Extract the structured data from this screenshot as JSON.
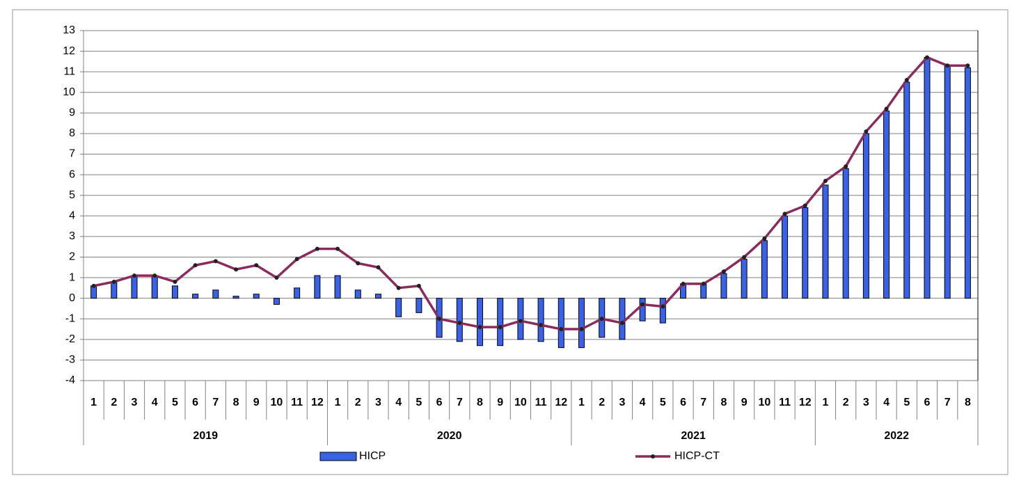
{
  "chart_data": {
    "type": "bar-line",
    "category_groups": [
      {
        "name": "2019",
        "categories": [
          "1",
          "2",
          "3",
          "4",
          "5",
          "6",
          "7",
          "8",
          "9",
          "10",
          "11",
          "12"
        ]
      },
      {
        "name": "2020",
        "categories": [
          "1",
          "2",
          "3",
          "4",
          "5",
          "6",
          "7",
          "8",
          "9",
          "10",
          "11",
          "12"
        ]
      },
      {
        "name": "2021",
        "categories": [
          "1",
          "2",
          "3",
          "4",
          "5",
          "6",
          "7",
          "8",
          "9",
          "10",
          "11",
          "12"
        ]
      },
      {
        "name": "2022",
        "categories": [
          "1",
          "2",
          "3",
          "4",
          "5",
          "6",
          "7",
          "8"
        ]
      }
    ],
    "series": [
      {
        "name": "HICP",
        "kind": "bar",
        "color": "#3a62e8",
        "values": [
          0.6,
          0.8,
          1.1,
          1.1,
          0.6,
          0.2,
          0.4,
          0.1,
          0.2,
          -0.3,
          0.5,
          1.1,
          1.1,
          0.4,
          0.2,
          -0.9,
          -0.7,
          -1.9,
          -2.1,
          -2.3,
          -2.3,
          -2.0,
          -2.1,
          -2.4,
          -2.4,
          -1.9,
          -2.0,
          -1.1,
          -1.2,
          0.7,
          0.7,
          1.2,
          1.9,
          2.8,
          4.0,
          4.4,
          5.5,
          6.3,
          8.0,
          9.1,
          10.5,
          11.7,
          11.3,
          11.2
        ]
      },
      {
        "name": "HICP-CT",
        "kind": "line",
        "color": "#8b2b5c",
        "values": [
          0.6,
          0.8,
          1.1,
          1.1,
          0.8,
          1.6,
          1.8,
          1.4,
          1.6,
          1.0,
          1.9,
          2.4,
          2.4,
          1.7,
          1.5,
          0.5,
          0.6,
          -1.0,
          -1.2,
          -1.4,
          -1.4,
          -1.1,
          -1.3,
          -1.5,
          -1.5,
          -1.0,
          -1.2,
          -0.3,
          -0.4,
          0.7,
          0.7,
          1.3,
          2.0,
          2.9,
          4.1,
          4.5,
          5.7,
          6.4,
          8.1,
          9.2,
          10.6,
          11.7,
          11.3,
          11.3
        ]
      }
    ],
    "ylim": [
      -4,
      13
    ],
    "yticks": [
      -4,
      -3,
      -2,
      -1,
      0,
      1,
      2,
      3,
      4,
      5,
      6,
      7,
      8,
      9,
      10,
      11,
      12,
      13
    ],
    "grid": true
  }
}
